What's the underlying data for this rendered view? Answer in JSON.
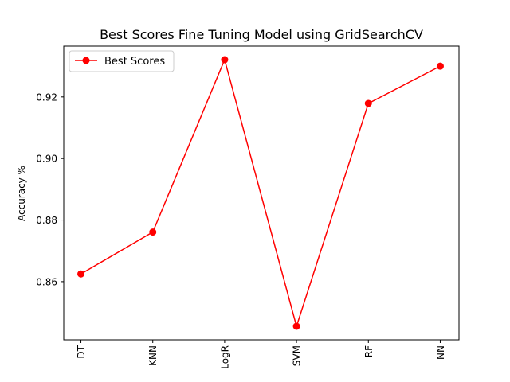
{
  "chart_data": {
    "type": "line",
    "title": "Best Scores Fine Tuning Model using GridSearchCV",
    "xlabel": "",
    "ylabel": "Accuracy %",
    "categories": [
      "DT",
      "KNN",
      "LogR",
      "SVM",
      "RF",
      "NN"
    ],
    "series": [
      {
        "name": "Best Scores",
        "color": "#ff0000",
        "marker": "circle",
        "values": [
          0.8625,
          0.8761,
          0.9321,
          0.8455,
          0.9179,
          0.93
        ]
      }
    ],
    "ylim": [
      0.8411,
      0.9365
    ],
    "yticks": [
      0.86,
      0.88,
      0.9,
      0.92
    ],
    "ytick_labels": [
      "0.86",
      "0.88",
      "0.90",
      "0.92"
    ],
    "xtick_rotation": "vertical",
    "grid": false,
    "legend": {
      "position": "top-left"
    }
  }
}
